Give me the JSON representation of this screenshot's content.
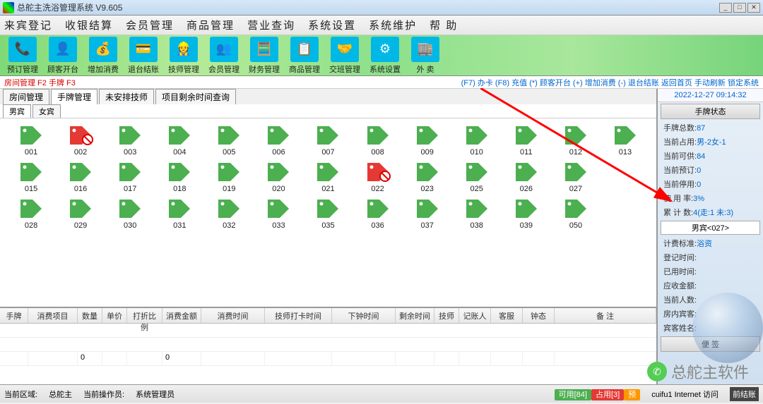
{
  "title": "总舵主洗浴管理系统 V9.605",
  "menu": [
    "来宾登记",
    "收银结算",
    "会员管理",
    "商品管理",
    "营业查询",
    "系统设置",
    "系统维护",
    "帮 助"
  ],
  "toolbar": [
    {
      "icon": "📞",
      "label": "预订管理"
    },
    {
      "icon": "👤",
      "label": "顾客开台"
    },
    {
      "icon": "💰",
      "label": "增加消费"
    },
    {
      "icon": "💳",
      "label": "退台结账"
    },
    {
      "icon": "👷",
      "label": "技师管理"
    },
    {
      "icon": "👥",
      "label": "会员管理"
    },
    {
      "icon": "🧮",
      "label": "财务管理"
    },
    {
      "icon": "📋",
      "label": "商品管理"
    },
    {
      "icon": "🤝",
      "label": "交班管理"
    },
    {
      "icon": "⚙",
      "label": "系统设置"
    },
    {
      "icon": "🏬",
      "label": "外 卖"
    }
  ],
  "shortcuts_left": "房间管理 F2  手牌 F3",
  "shortcuts_right": "(F7) 办卡 (F8) 充值 (*) 顾客开台 (+) 增加消费 (-) 退台结账  返回首页 手动刷新 锁定系统",
  "clock": "2022-12-27 09:14:32",
  "tabs1": [
    "房间管理",
    "手牌管理",
    "未安排技师",
    "项目剩余时间查询"
  ],
  "tabs1_active": 1,
  "tabs2": [
    "男宾",
    "女宾"
  ],
  "tabs2_active": 0,
  "tag_cols": 13,
  "tags": [
    {
      "num": "001",
      "state": "free"
    },
    {
      "num": "002",
      "state": "busy"
    },
    {
      "num": "003",
      "state": "free"
    },
    {
      "num": "004",
      "state": "free"
    },
    {
      "num": "005",
      "state": "free"
    },
    {
      "num": "006",
      "state": "free"
    },
    {
      "num": "007",
      "state": "free"
    },
    {
      "num": "008",
      "state": "free"
    },
    {
      "num": "009",
      "state": "free"
    },
    {
      "num": "010",
      "state": "free"
    },
    {
      "num": "011",
      "state": "free"
    },
    {
      "num": "012",
      "state": "free"
    },
    {
      "num": "013",
      "state": "free"
    },
    {
      "num": "015",
      "state": "free"
    },
    {
      "num": "016",
      "state": "free"
    },
    {
      "num": "017",
      "state": "free"
    },
    {
      "num": "018",
      "state": "free"
    },
    {
      "num": "019",
      "state": "free"
    },
    {
      "num": "020",
      "state": "free"
    },
    {
      "num": "021",
      "state": "free"
    },
    {
      "num": "022",
      "state": "busy"
    },
    {
      "num": "023",
      "state": "free"
    },
    {
      "num": "025",
      "state": "free"
    },
    {
      "num": "026",
      "state": "free"
    },
    {
      "num": "027",
      "state": "free"
    },
    {
      "num": "",
      "state": "none"
    },
    {
      "num": "028",
      "state": "free"
    },
    {
      "num": "029",
      "state": "free"
    },
    {
      "num": "030",
      "state": "free"
    },
    {
      "num": "031",
      "state": "free"
    },
    {
      "num": "032",
      "state": "free"
    },
    {
      "num": "033",
      "state": "free"
    },
    {
      "num": "035",
      "state": "free"
    },
    {
      "num": "036",
      "state": "free"
    },
    {
      "num": "037",
      "state": "free"
    },
    {
      "num": "038",
      "state": "free"
    },
    {
      "num": "039",
      "state": "free"
    },
    {
      "num": "050",
      "state": "free"
    },
    {
      "num": "",
      "state": "none"
    }
  ],
  "tag_colors": {
    "free": "#4caf50",
    "busy": "#e53935"
  },
  "table_headers": [
    "手牌",
    "消费项目",
    "数量",
    "单价",
    "打折比例",
    "消费金额",
    "消费时间",
    "技师打卡时间",
    "下钟时间",
    "剩余时间",
    "技师",
    "记账人",
    "客服",
    "钟态",
    "备 注"
  ],
  "table_col_classes": [
    "c-sp",
    "c-xm",
    "c-sl",
    "c-dj",
    "c-bl",
    "c-je",
    "c-st",
    "c-dk",
    "c-xz",
    "c-sy",
    "c-js",
    "c-jr",
    "c-kf",
    "c-zt",
    "c-bz"
  ],
  "summary_row": [
    "",
    "",
    "0",
    "",
    "",
    "0",
    "",
    "",
    "",
    "",
    "",
    "",
    "",
    "",
    ""
  ],
  "side_header": "手牌状态",
  "side_stats": [
    {
      "k": "手牌总数:",
      "v": "87"
    },
    {
      "k": "当前占用:",
      "v": "男-2女-1"
    },
    {
      "k": "当前可供:",
      "v": "84"
    },
    {
      "k": "当前预订:",
      "v": "0"
    },
    {
      "k": "当前停用:",
      "v": "0"
    },
    {
      "k": "使 用 率:",
      "v": "3%"
    },
    {
      "k": "累 计 数:",
      "v": "4(走:1 未:3)"
    }
  ],
  "side_select": "男宾<027>",
  "side_info": [
    {
      "k": "计费标准:",
      "v": "浴资"
    },
    {
      "k": "登记时间:",
      "v": ""
    },
    {
      "k": "已用时间:",
      "v": ""
    },
    {
      "k": "应收金额:",
      "v": ""
    },
    {
      "k": "当前人数:",
      "v": ""
    },
    {
      "k": "房内宾客:",
      "v": ""
    },
    {
      "k": "宾客姓名:",
      "v": ""
    }
  ],
  "side_button": "便 签",
  "status": {
    "area_label": "当前区域:",
    "area": "总舵主",
    "op_label": "当前操作员:",
    "op": "系统管理员",
    "chips": [
      {
        "t": "可用[84]",
        "c": "#4caf50"
      },
      {
        "t": "占用[3]",
        "c": "#e53935"
      },
      {
        "t": "预",
        "c": "#ff9800"
      }
    ],
    "right": "cuifu1  Internet 访问",
    "extra": "前结账"
  },
  "watermark": "总舵主软件"
}
